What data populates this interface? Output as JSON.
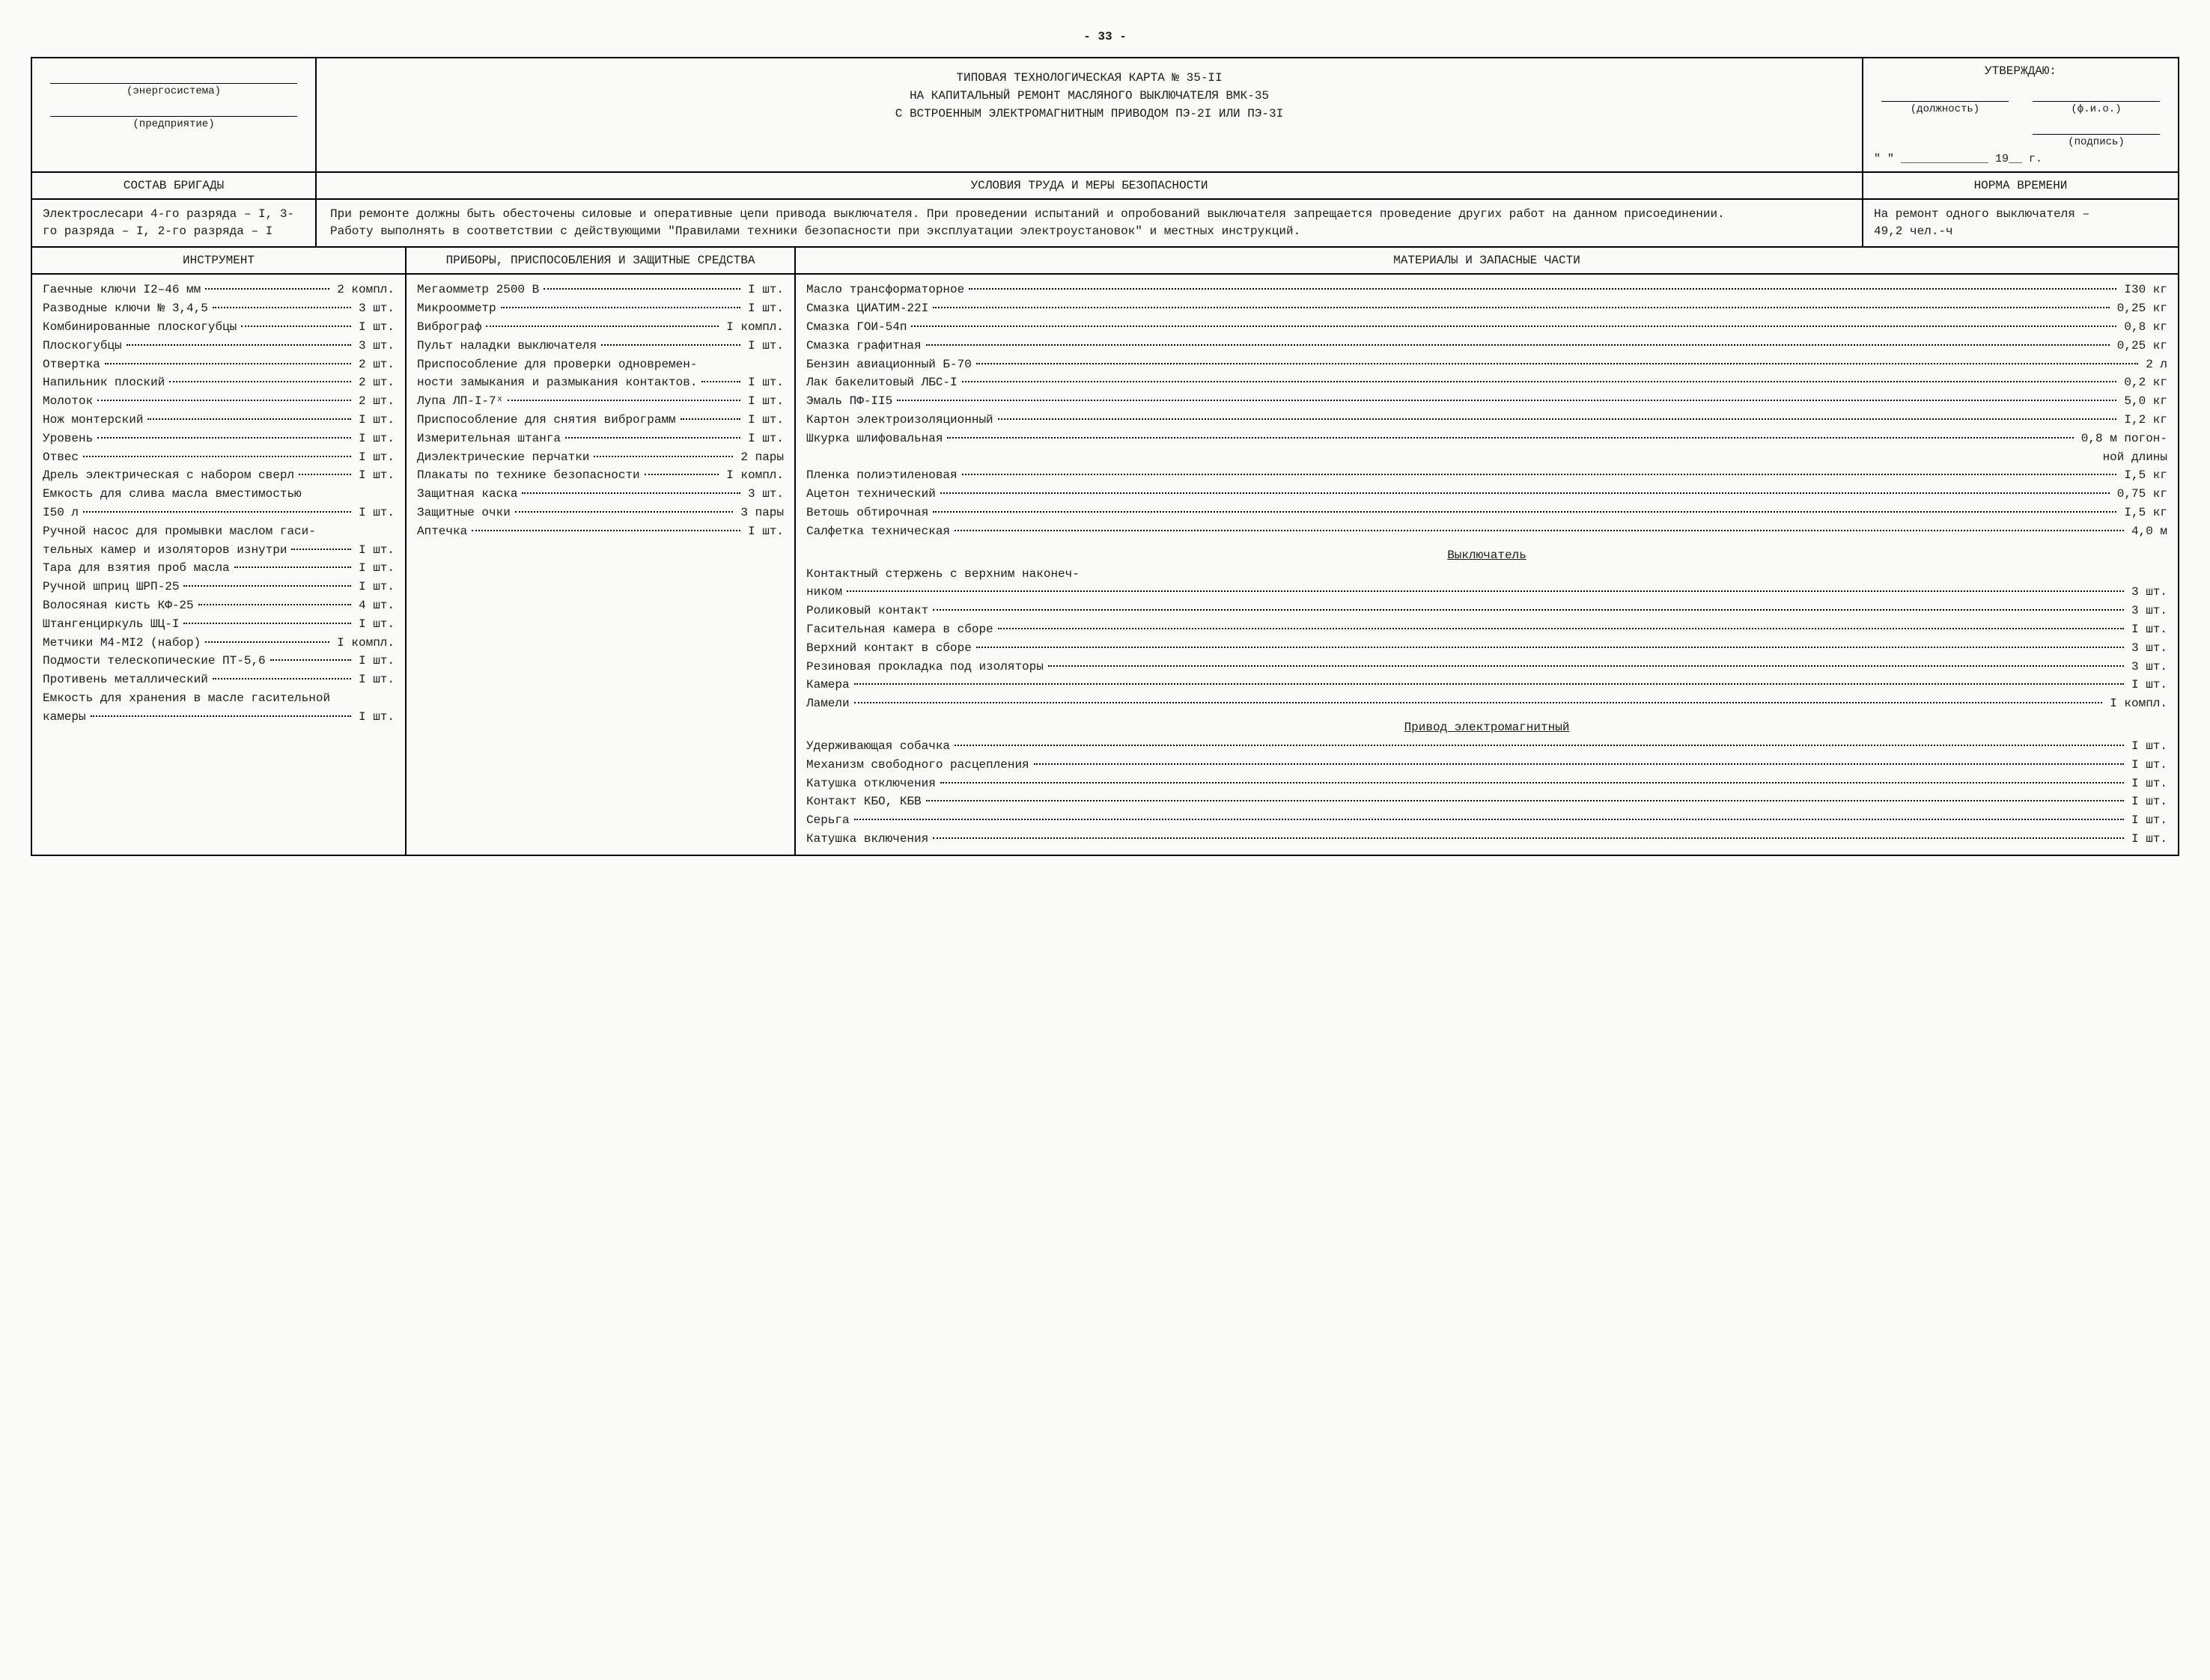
{
  "pageNumber": "- 33 -",
  "org": {
    "line1_label": "(энергосистема)",
    "line2_label": "(предприятие)"
  },
  "title": {
    "l1": "ТИПОВАЯ ТЕХНОЛОГИЧЕСКАЯ КАРТА № 35-II",
    "l2": "НА КАПИТАЛЬНЫЙ РЕМОНТ МАСЛЯНОГО ВЫКЛЮЧАТЕЛЯ ВМК-35",
    "l3": "С ВСТРОЕННЫМ ЭЛЕКТРОМАГНИТНЫМ ПРИВОДОМ ПЭ-2I ИЛИ ПЭ-3I"
  },
  "approve": {
    "header": "УТВЕРЖДАЮ:",
    "position_label": "(должность)",
    "fio_label": "(ф.и.о.)",
    "sign_label": "(подпись)",
    "year": "\"    \" _____________ 19__ г."
  },
  "headers": {
    "team": "СОСТАВ БРИГАДЫ",
    "cond": "УСЛОВИЯ ТРУДА И МЕРЫ БЕЗОПАСНОСТИ",
    "norm": "НОРМА ВРЕМЕНИ",
    "instr": "ИНСТРУМЕНТ",
    "dev": "ПРИБОРЫ, ПРИСПОСОБЛЕНИЯ И ЗАЩИТНЫЕ СРЕДСТВА",
    "mat": "МАТЕРИАЛЫ И ЗАПАСНЫЕ ЧАСТИ"
  },
  "team_text": "Электрослесари 4-го разряда – I, 3-го разряда – I, 2-го разряда – I",
  "cond_text": "При ремонте должны быть обесточены силовые и оперативные цепи привода выключателя. При проведении испытаний и опробований выключателя запрещается проведение других работ на данном присоединении.\nРаботу выполнять в соответствии с действующими \"Правилами техники безопасности при эксплуатации электроустановок\" и местных инструкций.",
  "norm_text_1": "На ремонт одного выключателя –",
  "norm_text_2": "49,2 чел.-ч",
  "instruments": [
    {
      "label": "Гаечные ключи I2–46 мм",
      "qty": "2 компл."
    },
    {
      "label": "Разводные ключи № 3,4,5",
      "qty": "3 шт."
    },
    {
      "label": "Комбинированные плоскогубцы",
      "qty": "I шт."
    },
    {
      "label": "Плоскогубцы",
      "qty": "3 шт."
    },
    {
      "label": "Отвертка",
      "qty": "2 шт."
    },
    {
      "label": "Напильник плоский",
      "qty": "2 шт."
    },
    {
      "label": "Молоток",
      "qty": "2 шт."
    },
    {
      "label": "Нож монтерский",
      "qty": "I шт."
    },
    {
      "label": "Уровень",
      "qty": "I шт."
    },
    {
      "label": "Отвес",
      "qty": "I шт."
    },
    {
      "label": "Дрель электрическая с набором сверл",
      "qty": "I шт."
    },
    {
      "label": "Емкость для слива масла вместимостью",
      "qty": ""
    },
    {
      "label": "I50 л",
      "qty": "I шт."
    },
    {
      "label": "Ручной насос для промывки маслом гаси-",
      "qty": ""
    },
    {
      "label": "тельных камер и изоляторов изнутри",
      "qty": "I шт."
    },
    {
      "label": "Тара для взятия проб масла",
      "qty": "I шт."
    },
    {
      "label": "Ручной шприц ШРП-25",
      "qty": "I шт."
    },
    {
      "label": "Волосяная кисть КФ-25",
      "qty": "4 шт."
    },
    {
      "label": "Штангенциркуль ШЦ-I",
      "qty": "I шт."
    },
    {
      "label": "Метчики М4-МI2 (набор)",
      "qty": "I компл."
    },
    {
      "label": "Подмости телескопические ПТ-5,6",
      "qty": "I шт."
    },
    {
      "label": "Противень металлический",
      "qty": "I шт."
    },
    {
      "label": "Емкость для хранения в масле гасительной",
      "qty": ""
    },
    {
      "label": "камеры",
      "qty": "I шт."
    }
  ],
  "devices": [
    {
      "label": "Мегаомметр 2500 В",
      "qty": "I шт."
    },
    {
      "label": "Микроомметр",
      "qty": "I шт."
    },
    {
      "label": "Виброграф",
      "qty": "I компл."
    },
    {
      "label": "Пульт наладки выключателя",
      "qty": "I шт."
    },
    {
      "label": "Приспособление для проверки одновремен-",
      "qty": ""
    },
    {
      "label": "ности замыкания и размыкания контактов.",
      "qty": "I шт."
    },
    {
      "label": "Лупа ЛП-I-7ˣ",
      "qty": "I шт."
    },
    {
      "label": "Приспособление для снятия виброграмм",
      "qty": "I шт."
    },
    {
      "label": "Измерительная штанга",
      "qty": "I шт."
    },
    {
      "label": "Диэлектрические перчатки",
      "qty": "2 пары"
    },
    {
      "label": "Плакаты по технике безопасности",
      "qty": "I компл."
    },
    {
      "label": "Защитная каска",
      "qty": "3 шт."
    },
    {
      "label": "Защитные очки",
      "qty": "3 пары"
    },
    {
      "label": "Аптечка",
      "qty": "I шт."
    }
  ],
  "materials": [
    {
      "label": "Масло трансформаторное",
      "qty": "I30 кг"
    },
    {
      "label": "Смазка ЦИАТИМ-22I",
      "qty": "0,25 кг"
    },
    {
      "label": "Смазка ГОИ-54п",
      "qty": "0,8 кг"
    },
    {
      "label": "Смазка графитная",
      "qty": "0,25 кг"
    },
    {
      "label": "Бензин авиационный Б-70",
      "qty": "2 л"
    },
    {
      "label": "Лак бакелитовый ЛБС-I",
      "qty": "0,2 кг"
    },
    {
      "label": "Эмаль ПФ-II5",
      "qty": "5,0 кг"
    },
    {
      "label": "Картон электроизоляционный",
      "qty": "I,2 кг"
    },
    {
      "label": "Шкурка шлифовальная",
      "qty": "0,8 м погон-"
    },
    {
      "label": "",
      "qty": "ной длины",
      "nodots": true
    },
    {
      "label": "Пленка полиэтиленовая",
      "qty": "I,5 кг"
    },
    {
      "label": "Ацетон технический",
      "qty": "0,75 кг"
    },
    {
      "label": "Ветошь обтирочная",
      "qty": "I,5 кг"
    },
    {
      "label": "Салфетка техническая",
      "qty": "4,0 м"
    }
  ],
  "switch_title": "Выключатель",
  "switch_items": [
    {
      "label": "Контактный стержень с верхним наконеч-",
      "qty": ""
    },
    {
      "label": "ником",
      "qty": "3 шт."
    },
    {
      "label": "Роликовый контакт",
      "qty": "3 шт."
    },
    {
      "label": "Гасительная камера в сборе",
      "qty": "I шт."
    },
    {
      "label": "Верхний контакт в сборе",
      "qty": "3 шт."
    },
    {
      "label": "Резиновая прокладка под изоляторы",
      "qty": "3 шт."
    },
    {
      "label": "Камера",
      "qty": "I шт."
    },
    {
      "label": "Ламели",
      "qty": "I компл."
    }
  ],
  "drive_title": "Привод электромагнитный",
  "drive_items": [
    {
      "label": "Удерживающая собачка",
      "qty": "I шт."
    },
    {
      "label": "Механизм свободного расцепления",
      "qty": "I шт."
    },
    {
      "label": "Катушка отключения",
      "qty": "I шт."
    },
    {
      "label": "Контакт КБО, КБВ",
      "qty": "I шт."
    },
    {
      "label": "Серьга",
      "qty": "I шт."
    },
    {
      "label": "Катушка включения",
      "qty": "I шт."
    }
  ]
}
